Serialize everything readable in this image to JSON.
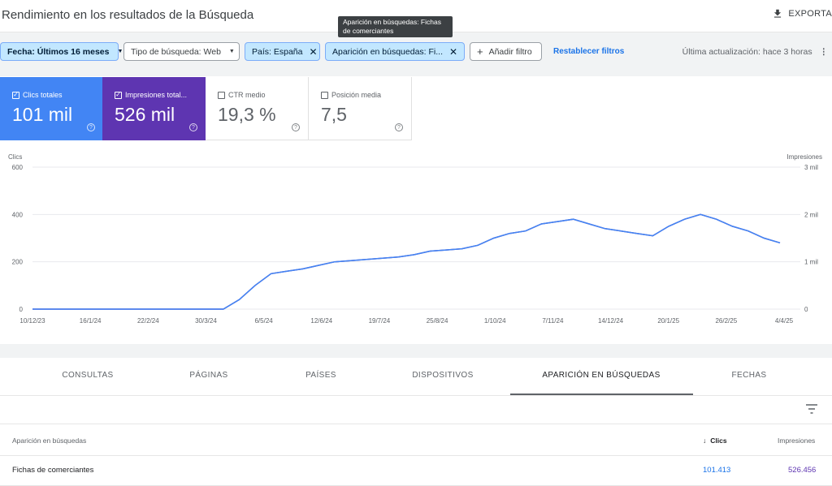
{
  "header": {
    "title": "Rendimiento en los resultados de la Búsqueda",
    "export_label": "EXPORTA"
  },
  "tooltip": {
    "text": "Aparición en búsquedas: Fichas de comerciantes"
  },
  "filters": {
    "date": "Fecha: Últimos 16 meses",
    "search_type": "Tipo de búsqueda: Web",
    "country": "País: España",
    "appearance": "Aparición en búsquedas: Fi...",
    "add": "Añadir filtro",
    "reset": "Restablecer filtros",
    "updated": "Última actualización: hace 3 horas"
  },
  "metrics": [
    {
      "label": "Clics totales",
      "value": "101 mil",
      "checked": true
    },
    {
      "label": "Impresiones total...",
      "value": "526 mil",
      "checked": true
    },
    {
      "label": "CTR medio",
      "value": "19,3 %",
      "checked": false
    },
    {
      "label": "Posición media",
      "value": "7,5",
      "checked": false
    }
  ],
  "colors": {
    "clicks": "#4285f4",
    "impressions": "#5e35b1",
    "link": "#1a73e8"
  },
  "chart_data": {
    "type": "line",
    "left_axis_label": "Clics",
    "right_axis_label": "Impresiones",
    "left_ticks": [
      "0",
      "200",
      "400",
      "600"
    ],
    "right_ticks": [
      "0",
      "1 mil",
      "2 mil",
      "3 mil"
    ],
    "ylim_left": [
      0,
      600
    ],
    "ylim_right": [
      0,
      3000
    ],
    "grid": true,
    "x_labels": [
      "10/12/23",
      "16/1/24",
      "22/2/24",
      "30/3/24",
      "6/5/24",
      "12/6/24",
      "19/7/24",
      "25/8/24",
      "1/10/24",
      "7/11/24",
      "14/12/24",
      "20/1/25",
      "26/2/25",
      "4/4/25"
    ],
    "series": [
      {
        "name": "Clics",
        "values": [
          0,
          0,
          0,
          0,
          0,
          0,
          0,
          0,
          0,
          0,
          0,
          0,
          0,
          40,
          100,
          150,
          160,
          170,
          185,
          200,
          205,
          210,
          215,
          220,
          230,
          245,
          250,
          255,
          270,
          300,
          320,
          330,
          360,
          370,
          380,
          360,
          340,
          330,
          320,
          310,
          350,
          380,
          400,
          380,
          350,
          330,
          300,
          280
        ]
      },
      {
        "name": "Impresiones",
        "values": [
          0,
          0,
          0,
          0,
          0,
          0,
          0,
          0,
          0,
          0,
          0,
          0,
          0,
          200,
          500,
          750,
          800,
          850,
          925,
          1000,
          1025,
          1050,
          1075,
          1100,
          1150,
          1225,
          1250,
          1275,
          1350,
          1500,
          1600,
          1650,
          1800,
          1850,
          1900,
          1800,
          1700,
          1650,
          1600,
          1550,
          1750,
          1900,
          2000,
          1900,
          1750,
          1650,
          1500,
          1400
        ]
      }
    ]
  },
  "tabs": [
    "CONSULTAS",
    "PÁGINAS",
    "PAÍSES",
    "DISPOSITIVOS",
    "APARICIÓN EN BÚSQUEDAS",
    "FECHAS"
  ],
  "table": {
    "headers": {
      "name": "Aparición en búsquedas",
      "clicks": "Clics",
      "impressions": "Impresiones"
    },
    "rows": [
      {
        "name": "Fichas de comerciantes",
        "clicks": "101.413",
        "impressions": "526.456"
      }
    ]
  }
}
